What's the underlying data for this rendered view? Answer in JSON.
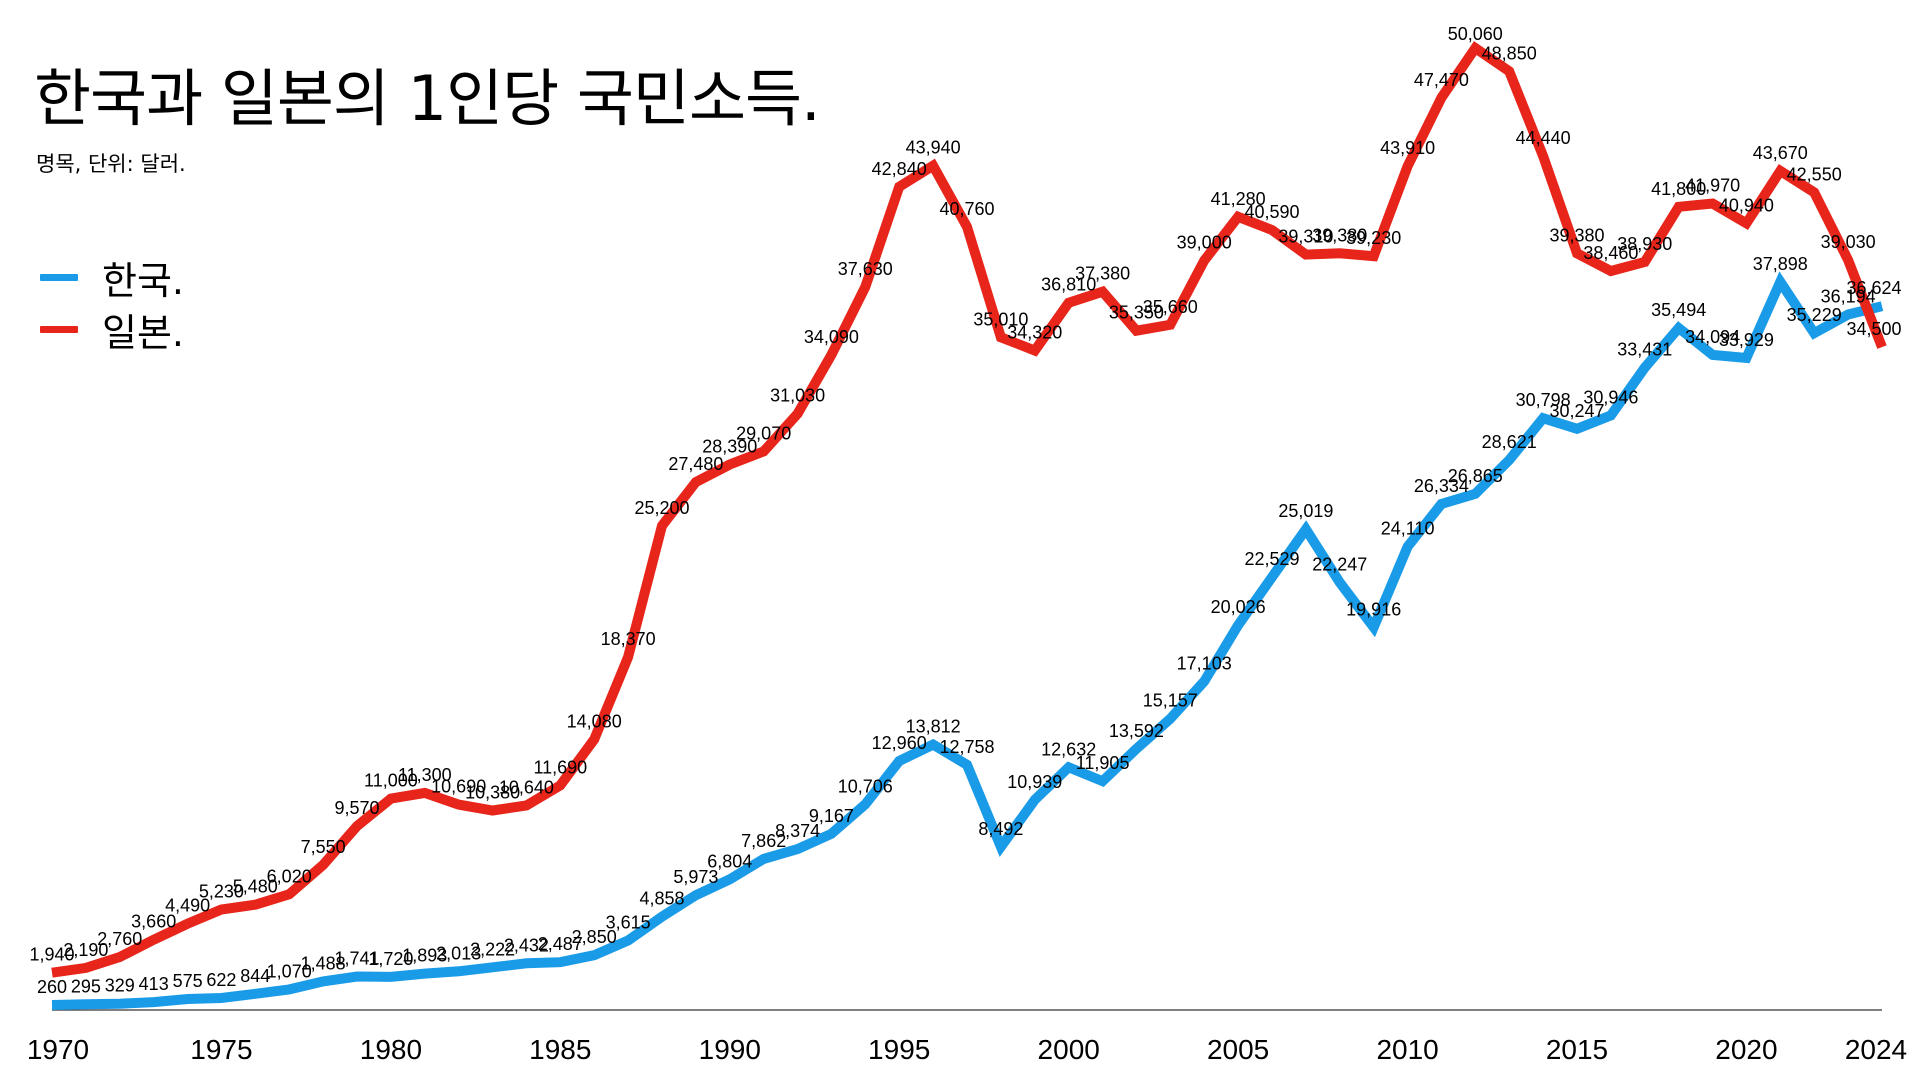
{
  "chart_data": {
    "type": "line",
    "title": "한국과 일본의 1인당 국민소득.",
    "subtitle": "명목, 단위: 달러.",
    "xlabel": "",
    "ylabel": "",
    "xlim": [
      1970,
      2024
    ],
    "ylim": [
      0,
      51000
    ],
    "grid": false,
    "legend_position": "left",
    "x_ticks": [
      "1970",
      "1975",
      "1980",
      "1985",
      "1990",
      "1995",
      "2000",
      "2005",
      "2010",
      "2015",
      "2020",
      "2024"
    ],
    "x": [
      1970,
      1971,
      1972,
      1973,
      1974,
      1975,
      1976,
      1977,
      1978,
      1979,
      1980,
      1981,
      1982,
      1983,
      1984,
      1985,
      1986,
      1987,
      1988,
      1989,
      1990,
      1991,
      1992,
      1993,
      1994,
      1995,
      1996,
      1997,
      1998,
      1999,
      2000,
      2001,
      2002,
      2003,
      2004,
      2005,
      2006,
      2007,
      2008,
      2009,
      2010,
      2011,
      2012,
      2013,
      2014,
      2015,
      2016,
      2017,
      2018,
      2019,
      2020,
      2021,
      2022,
      2023,
      2024
    ],
    "series": [
      {
        "name": "한국.",
        "color": "#1a9be8",
        "values": [
          260,
          295,
          329,
          413,
          575,
          622,
          844,
          1070,
          1488,
          1741,
          1720,
          1893,
          2013,
          2222,
          2432,
          2487,
          2850,
          3615,
          4858,
          5973,
          6804,
          7862,
          8374,
          9167,
          10706,
          12960,
          13812,
          12758,
          8492,
          10939,
          12632,
          11905,
          13592,
          15157,
          17103,
          20026,
          22529,
          25019,
          22247,
          19916,
          24110,
          26334,
          26865,
          28621,
          30798,
          30247,
          30946,
          33431,
          35494,
          34094,
          33929,
          37898,
          35229,
          36194,
          36624
        ],
        "labels": [
          "260",
          "295",
          "329",
          "413",
          "575",
          "622",
          "844",
          "1,070",
          "1,488",
          "1,741",
          "1,720",
          "1,893",
          "2,013",
          "2,222",
          "2,432",
          "2,487",
          "2,850",
          "3,615",
          "4,858",
          "5,973",
          "6,804",
          "7,862",
          "8,374",
          "9,167",
          "10,706",
          "12,960",
          "13,812",
          "12,758",
          "8,492",
          "10,939",
          "12,632",
          "11,905",
          "13,592",
          "15,157",
          "17,103",
          "20,026",
          "22,529",
          "25,019",
          "22,247",
          "19,916",
          "24,110",
          "26,334",
          "26,865",
          "28,621",
          "30,798",
          "30,247",
          "30,946",
          "33,431",
          "35,494",
          "34,094",
          "33,929",
          "37,898",
          "35,229",
          "36,194",
          "36,624"
        ]
      },
      {
        "name": "일본.",
        "color": "#e8251a",
        "values": [
          1940,
          2190,
          2760,
          3660,
          4490,
          5230,
          5480,
          6020,
          7550,
          9570,
          11000,
          11300,
          10690,
          10380,
          10640,
          11690,
          14080,
          18370,
          25200,
          27480,
          28390,
          29070,
          31030,
          34090,
          37630,
          42840,
          43940,
          40760,
          35010,
          34320,
          36810,
          37380,
          35350,
          35660,
          39000,
          41280,
          40590,
          39310,
          39380,
          39230,
          43910,
          47470,
          50060,
          48850,
          44440,
          39380,
          38460,
          38930,
          41800,
          41970,
          40940,
          43670,
          42550,
          39030,
          34500
        ],
        "labels": [
          "1,940",
          "2,190",
          "2,760",
          "3,660",
          "4,490",
          "5,230",
          "5,480",
          "6,020",
          "7,550",
          "9,570",
          "11,000",
          "11,300",
          "10,690",
          "10,380",
          "10,640",
          "11,690",
          "14,080",
          "18,370",
          "25,200",
          "27,480",
          "28,390",
          "29,070",
          "31,030",
          "34,090",
          "37,630",
          "42,840",
          "43,940",
          "40,760",
          "35,010",
          "34,320",
          "36,810",
          "37,380",
          "35,350",
          "35,660",
          "39,000",
          "41,280",
          "40,590",
          "39,310",
          "39,380",
          "39,230",
          "43,910",
          "47,470",
          "50,060",
          "48,850",
          "44,440",
          "39,380",
          "38,460",
          "38,930",
          "41,800",
          "41,970",
          "40,940",
          "43,670",
          "42,550",
          "39,030",
          "34,500"
        ]
      }
    ]
  }
}
